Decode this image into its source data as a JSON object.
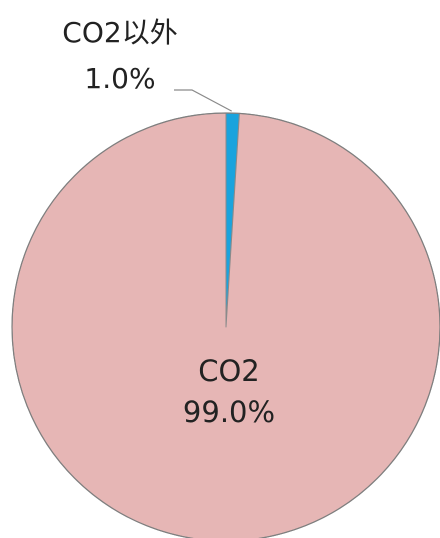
{
  "chart_data": {
    "type": "pie",
    "title": "",
    "start_angle_deg": 0,
    "direction": "clockwise",
    "slices": [
      {
        "label": "CO2以外",
        "value": 1.0,
        "value_label": "1.0%",
        "color": "#1aa3dd"
      },
      {
        "label": "CO2",
        "value": 99.0,
        "value_label": "99.0%",
        "color": "#e6b6b5"
      }
    ],
    "slice_border_color": "#8a8a8a",
    "outer_border_color": "#7f7f7f",
    "legend": "none"
  }
}
